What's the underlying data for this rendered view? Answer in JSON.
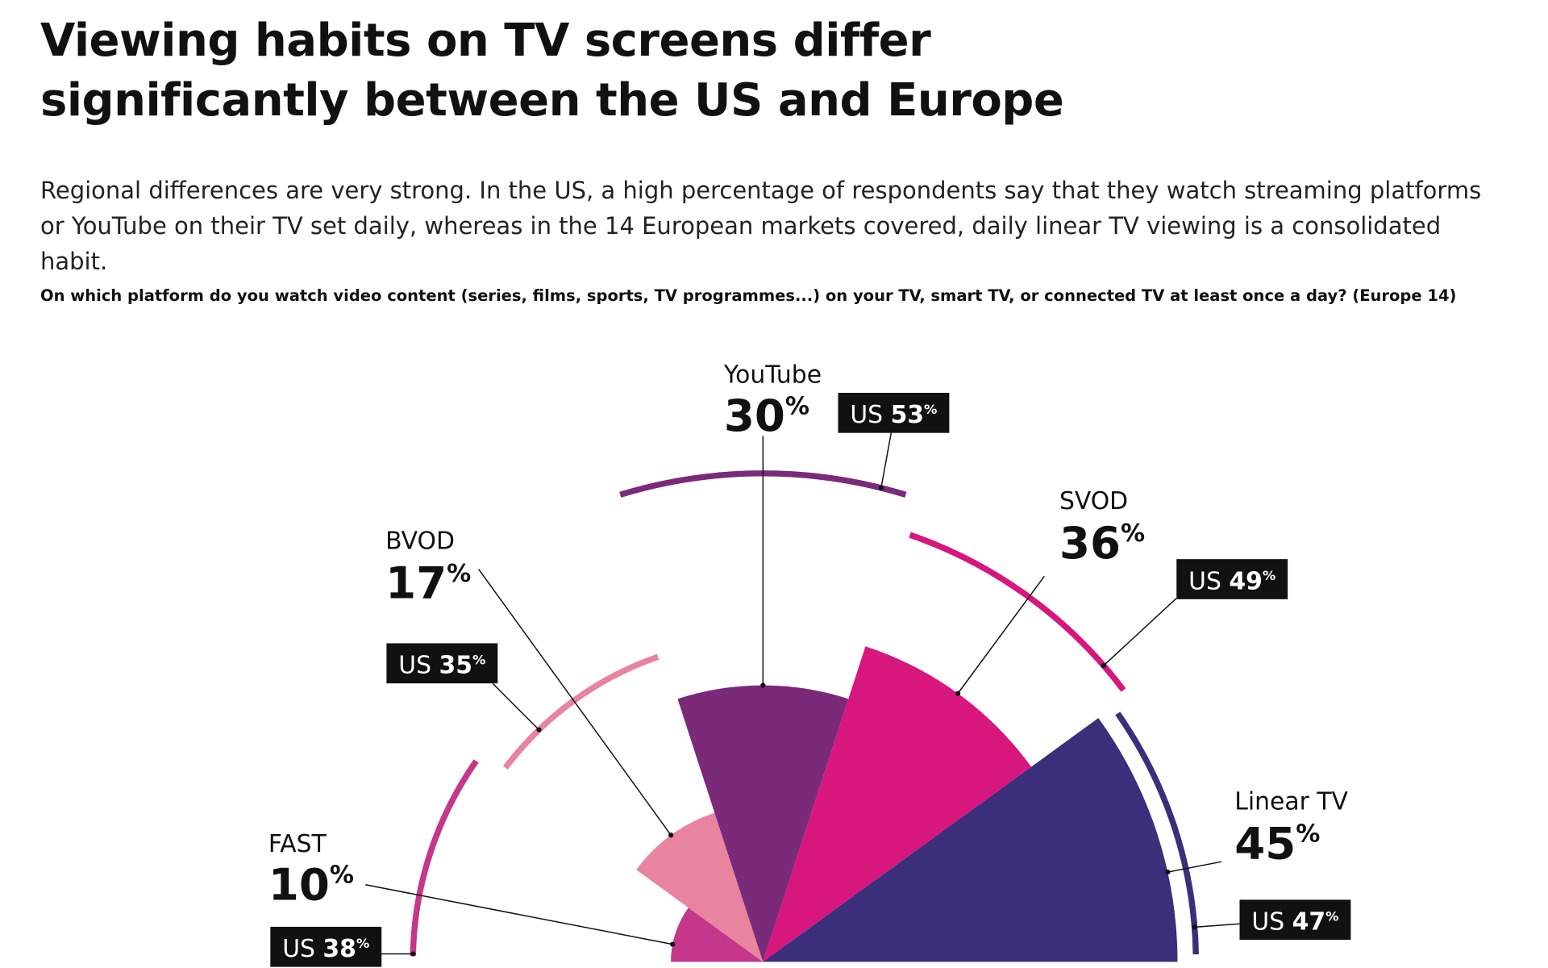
{
  "title": "Viewing habits on TV screens differ significantly between the US and Europe",
  "subtitle": "Regional differences are very strong. In the US, a high percentage of respondents say that they watch streaming platforms or YouTube on their TV set daily, whereas in the 14 European markets covered, daily linear TV viewing is a consolidated habit.",
  "chart_data": {
    "type": "polar-area",
    "title": "On which platform do you watch video content (series, films, sports, TV programmes...) on your TV, smart TV, or connected TV at least once a day? (Europe 14)",
    "categories": [
      "FAST",
      "BVOD",
      "YouTube",
      "SVOD",
      "Linear TV"
    ],
    "colors": [
      "#c4378a",
      "#e8849f",
      "#7b2a7a",
      "#d8177e",
      "#3b2e7a"
    ],
    "series": [
      {
        "values": [
          10,
          17,
          30,
          36,
          45
        ],
        "value_labels": [
          "10%",
          "17%",
          "30%",
          "36%",
          "45%"
        ]
      },
      {
        "name": "US",
        "values": [
          38,
          35,
          53,
          49,
          47
        ],
        "value_labels": [
          "US 38%",
          "US 35%",
          "US 53%",
          "US 49%",
          "US 47%"
        ]
      }
    ]
  }
}
